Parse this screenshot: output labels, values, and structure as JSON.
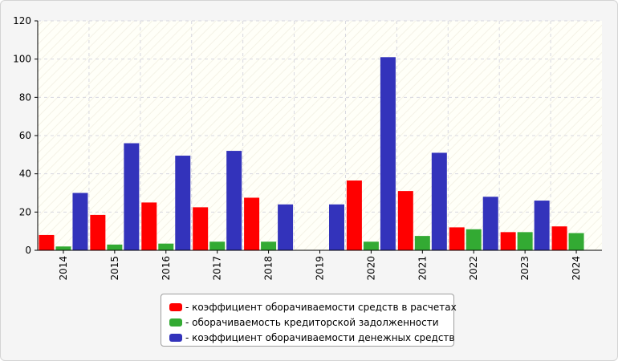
{
  "chart_data": {
    "type": "bar",
    "categories": [
      "2014",
      "2015",
      "2016",
      "2017",
      "2018",
      "2019",
      "2020",
      "2021",
      "2022",
      "2023",
      "2024"
    ],
    "series": [
      {
        "name": "- коэффициент оборачиваемости средств в расчетах",
        "color": "#ff0000",
        "values": [
          8,
          18.5,
          25,
          22.5,
          27.5,
          0,
          36.5,
          31,
          12,
          9.5,
          12.5
        ]
      },
      {
        "name": "- оборачиваемость кредиторской задолженности",
        "color": "#33aa33",
        "values": [
          2,
          3,
          3.5,
          4.5,
          4.5,
          0,
          4.5,
          7.5,
          11,
          9.5,
          9
        ]
      },
      {
        "name": "- коэффициент оборачиваемости денежных средств",
        "color": "#3333bb",
        "values": [
          30,
          56,
          49.5,
          52,
          24,
          24,
          101,
          51,
          28,
          26,
          0
        ]
      }
    ],
    "xlabel": "",
    "ylabel": "",
    "ylim": [
      0,
      120
    ],
    "yticks": [
      0,
      20,
      40,
      60,
      80,
      100,
      120
    ],
    "grid": true,
    "legend_position": "bottom-center"
  }
}
